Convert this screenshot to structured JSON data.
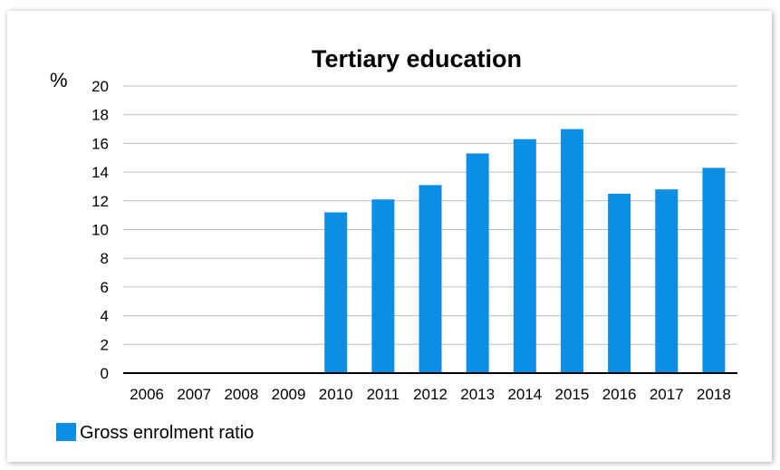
{
  "chart_data": {
    "type": "bar",
    "title": "Tertiary education",
    "ylabel": "%",
    "xlabel": "",
    "categories": [
      "2006",
      "2007",
      "2008",
      "2009",
      "2010",
      "2011",
      "2012",
      "2013",
      "2014",
      "2015",
      "2016",
      "2017",
      "2018"
    ],
    "series": [
      {
        "name": "Gross enrolment ratio",
        "values": [
          null,
          null,
          null,
          null,
          11.2,
          12.1,
          13.1,
          15.3,
          16.3,
          17.0,
          12.5,
          12.8,
          14.3
        ],
        "color": "#0b8fe6"
      }
    ],
    "ylim": [
      0,
      20
    ],
    "yticks": [
      0,
      2,
      4,
      6,
      8,
      10,
      12,
      14,
      16,
      18,
      20
    ],
    "grid": true,
    "legend_position": "bottom-left"
  }
}
